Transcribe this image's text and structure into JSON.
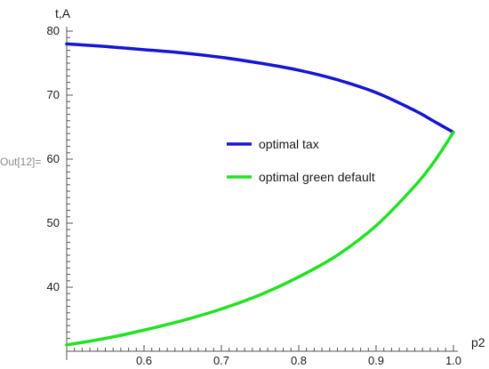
{
  "cell_label": "Out[12]=",
  "chart_data": {
    "type": "line",
    "xlabel": "p2",
    "ylabel": "t,A",
    "xlim": [
      0.5,
      1.0
    ],
    "ylim": [
      30,
      80
    ],
    "x_ticks": [
      "0.6",
      "0.7",
      "0.8",
      "0.9",
      "1.0"
    ],
    "y_ticks": [
      "40",
      "50",
      "60",
      "70",
      "80"
    ],
    "legend_position": "center-right",
    "series": [
      {
        "name": "optimal tax",
        "color": "#1414d2",
        "x": [
          0.5,
          0.55,
          0.6,
          0.65,
          0.7,
          0.75,
          0.8,
          0.85,
          0.9,
          0.95,
          0.975,
          1.0
        ],
        "y": [
          78.0,
          77.6,
          77.1,
          76.6,
          75.9,
          75.0,
          73.9,
          72.4,
          70.4,
          67.6,
          65.9,
          64.2
        ]
      },
      {
        "name": "optimal green default",
        "color": "#22e122",
        "x": [
          0.5,
          0.55,
          0.6,
          0.65,
          0.7,
          0.75,
          0.8,
          0.85,
          0.9,
          0.95,
          0.975,
          1.0
        ],
        "y": [
          31.0,
          32.0,
          33.3,
          34.8,
          36.6,
          38.8,
          41.6,
          45.0,
          49.6,
          55.8,
          59.6,
          64.2
        ]
      }
    ]
  }
}
